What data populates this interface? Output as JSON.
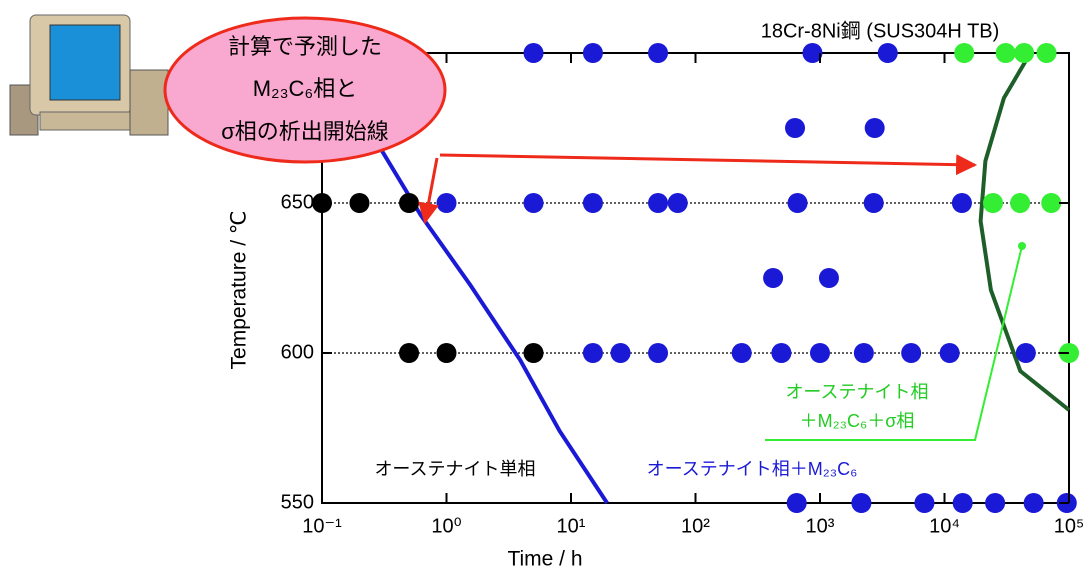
{
  "chart_data": {
    "type": "scatter",
    "title": "18Cr-8Ni鋼 (SUS304H TB)",
    "x_label": "Time / h",
    "y_label": "Temperature / ℃",
    "log_x": true,
    "xlim": [
      0.1,
      100000
    ],
    "ylim": [
      550,
      700
    ],
    "xticks": [
      {
        "value": 0.1,
        "label": "10⁻¹"
      },
      {
        "value": 1,
        "label": "10⁰"
      },
      {
        "value": 10,
        "label": "10¹"
      },
      {
        "value": 100,
        "label": "10²"
      },
      {
        "value": 1000,
        "label": "10³"
      },
      {
        "value": 10000,
        "label": "10⁴"
      },
      {
        "value": 100000,
        "label": "10⁵"
      }
    ],
    "yticks": [
      550,
      600,
      650
    ],
    "grid_lines": [
      600,
      650
    ],
    "series": [
      {
        "color": "#000000",
        "x": [
          0.1,
          0.2,
          0.5,
          0.5,
          1,
          5
        ],
        "values": [
          650,
          650,
          650,
          600,
          600,
          600
        ]
      },
      {
        "color": "#1a1ad6",
        "x": [
          5,
          15,
          50,
          870,
          3500,
          630,
          2750,
          1,
          5,
          15,
          50,
          72,
          660,
          2700,
          13800,
          420,
          1180,
          15,
          25,
          50,
          235,
          490,
          1000,
          2250,
          5400,
          11000,
          45000,
          650,
          2150,
          6900,
          14000,
          25500,
          52000,
          96000
        ],
        "values": [
          700,
          700,
          700,
          700,
          700,
          675,
          675,
          650,
          650,
          650,
          650,
          650,
          650,
          650,
          650,
          625,
          625,
          600,
          600,
          600,
          600,
          600,
          600,
          600,
          600,
          600,
          600,
          550,
          550,
          550,
          550,
          550,
          550,
          550
        ]
      },
      {
        "color": "#33ee33",
        "x": [
          14400,
          31000,
          43600,
          66000,
          24500,
          40500,
          72000,
          100000
        ],
        "values": [
          700,
          700,
          700,
          700,
          650,
          650,
          650,
          600
        ]
      }
    ],
    "lines": [
      {
        "color": "#1a1ad6",
        "x": [
          0.16,
          0.3,
          0.62,
          1.55,
          3.9,
          8.1,
          19.5
        ],
        "values": [
          690,
          667.7,
          646,
          622.7,
          597.7,
          574,
          550
        ]
      },
      {
        "color": "#1e5e28",
        "x": [
          49000,
          30000,
          21300,
          19500,
          23600,
          40600,
          100000
        ],
        "values": [
          700,
          685,
          664,
          644,
          621,
          594,
          581
        ]
      }
    ],
    "annotations": {
      "callout": [
        "計算で予測した",
        "M₂₃C₆相と",
        "σ相の析出開始線"
      ],
      "austenite": "オーステナイト単相",
      "austenite_m23c6": "オーステナイト相＋M₂₃C₆",
      "austenite_m23c6_sigma": [
        "オーステナイト相",
        "＋M₂₃C₆＋σ相"
      ]
    }
  }
}
